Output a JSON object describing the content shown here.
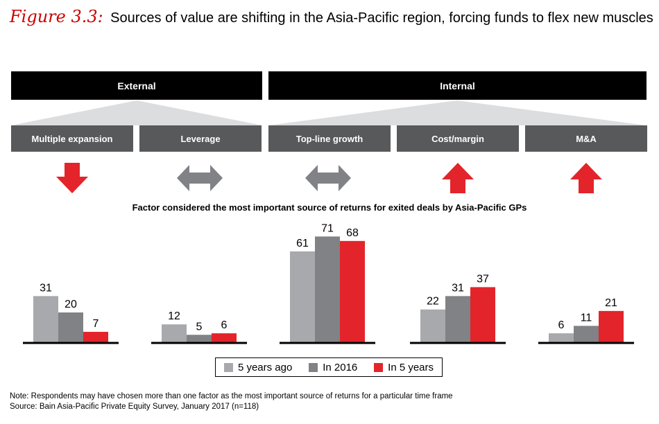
{
  "figure": {
    "label": "Figure 3.3:",
    "title": "Sources of value are shifting in the Asia-Pacific region, forcing funds to flex new muscles"
  },
  "groups": {
    "external": "External",
    "internal": "Internal"
  },
  "factors": [
    {
      "label": "Multiple expansion",
      "trend": "down",
      "icon": "red-down-arrow-icon"
    },
    {
      "label": "Leverage",
      "trend": "flat",
      "icon": "grey-double-arrow-icon"
    },
    {
      "label": "Top-line growth",
      "trend": "flat",
      "icon": "grey-double-arrow-icon"
    },
    {
      "label": "Cost/margin",
      "trend": "up",
      "icon": "red-up-arrow-icon"
    },
    {
      "label": "M&A",
      "trend": "up",
      "icon": "red-up-arrow-icon"
    }
  ],
  "chart_data": {
    "type": "bar",
    "title": "Factor considered the most important source of returns for exited deals by Asia-Pacific GPs",
    "categories": [
      "Multiple expansion",
      "Leverage",
      "Top-line growth",
      "Cost/margin",
      "M&A"
    ],
    "series": [
      {
        "name": "5 years ago",
        "values": [
          31,
          12,
          61,
          22,
          6
        ],
        "color": "#a7a9ac"
      },
      {
        "name": "In 2016",
        "values": [
          20,
          5,
          71,
          31,
          11
        ],
        "color": "#808285"
      },
      {
        "name": "In 5 years",
        "values": [
          7,
          6,
          68,
          37,
          21
        ],
        "color": "#e3242b"
      }
    ],
    "grid": false,
    "legend_position": "bottom"
  },
  "colors": {
    "accent_red": "#e3242b",
    "box_grey": "#58595b",
    "arrow_grey": "#808285",
    "triangle_grey": "#dcdddf"
  },
  "notes": {
    "note": "Note: Respondents may have chosen more than one factor as the most important source of returns for a particular time frame",
    "source": "Source: Bain Asia-Pacific Private Equity Survey, January 2017 (n=118)"
  }
}
